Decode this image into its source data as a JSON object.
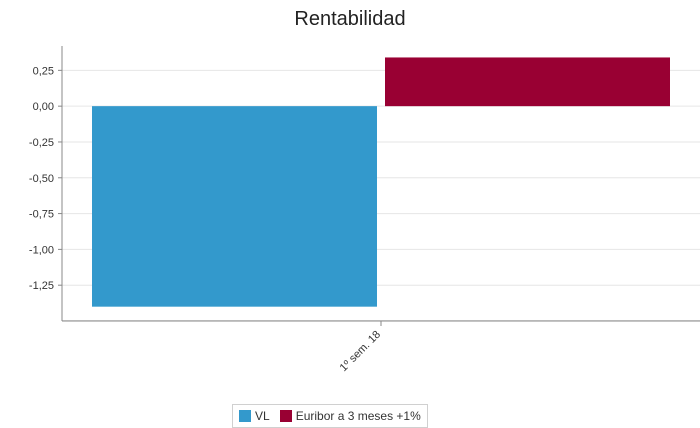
{
  "chart_data": {
    "type": "bar",
    "title": "Rentabilidad",
    "xlabel": "",
    "ylabel": "",
    "categories": [
      "1º sem. 18"
    ],
    "series": [
      {
        "name": "VL",
        "color": "#3399cc",
        "values": [
          -1.4
        ]
      },
      {
        "name": "Euribor a 3 meses +1%",
        "color": "#990033",
        "values": [
          0.34
        ]
      }
    ],
    "ylim": [
      -1.5,
      0.42
    ],
    "yticks": [
      0.25,
      0.0,
      -0.25,
      -0.5,
      -0.75,
      -1.0,
      -1.25
    ],
    "ytick_labels": [
      "0,25",
      "0,00",
      "-0,25",
      "-0,50",
      "-0,75",
      "-1,00",
      "-1,25"
    ],
    "grid": true,
    "legend_position": "bottom"
  }
}
